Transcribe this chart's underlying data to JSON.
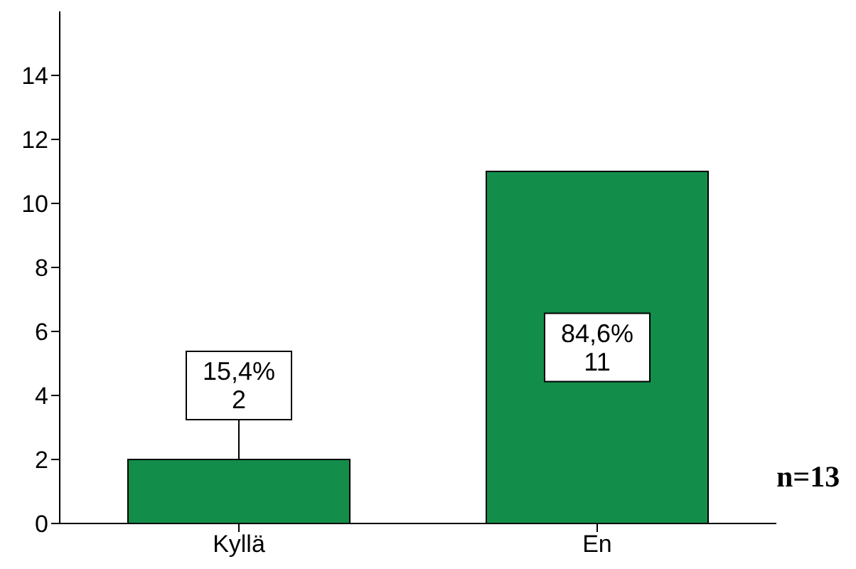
{
  "chart_data": {
    "type": "bar",
    "categories": [
      "Kyllä",
      "En"
    ],
    "values": [
      2,
      11
    ],
    "color": "#138d4a",
    "value_labels": [
      "15,4%\n2",
      "84,6%\n11"
    ],
    "ylim": [
      0,
      16
    ],
    "yticks": [
      0,
      2,
      4,
      6,
      8,
      10,
      12,
      14
    ],
    "annotations": [
      "n=13"
    ]
  }
}
